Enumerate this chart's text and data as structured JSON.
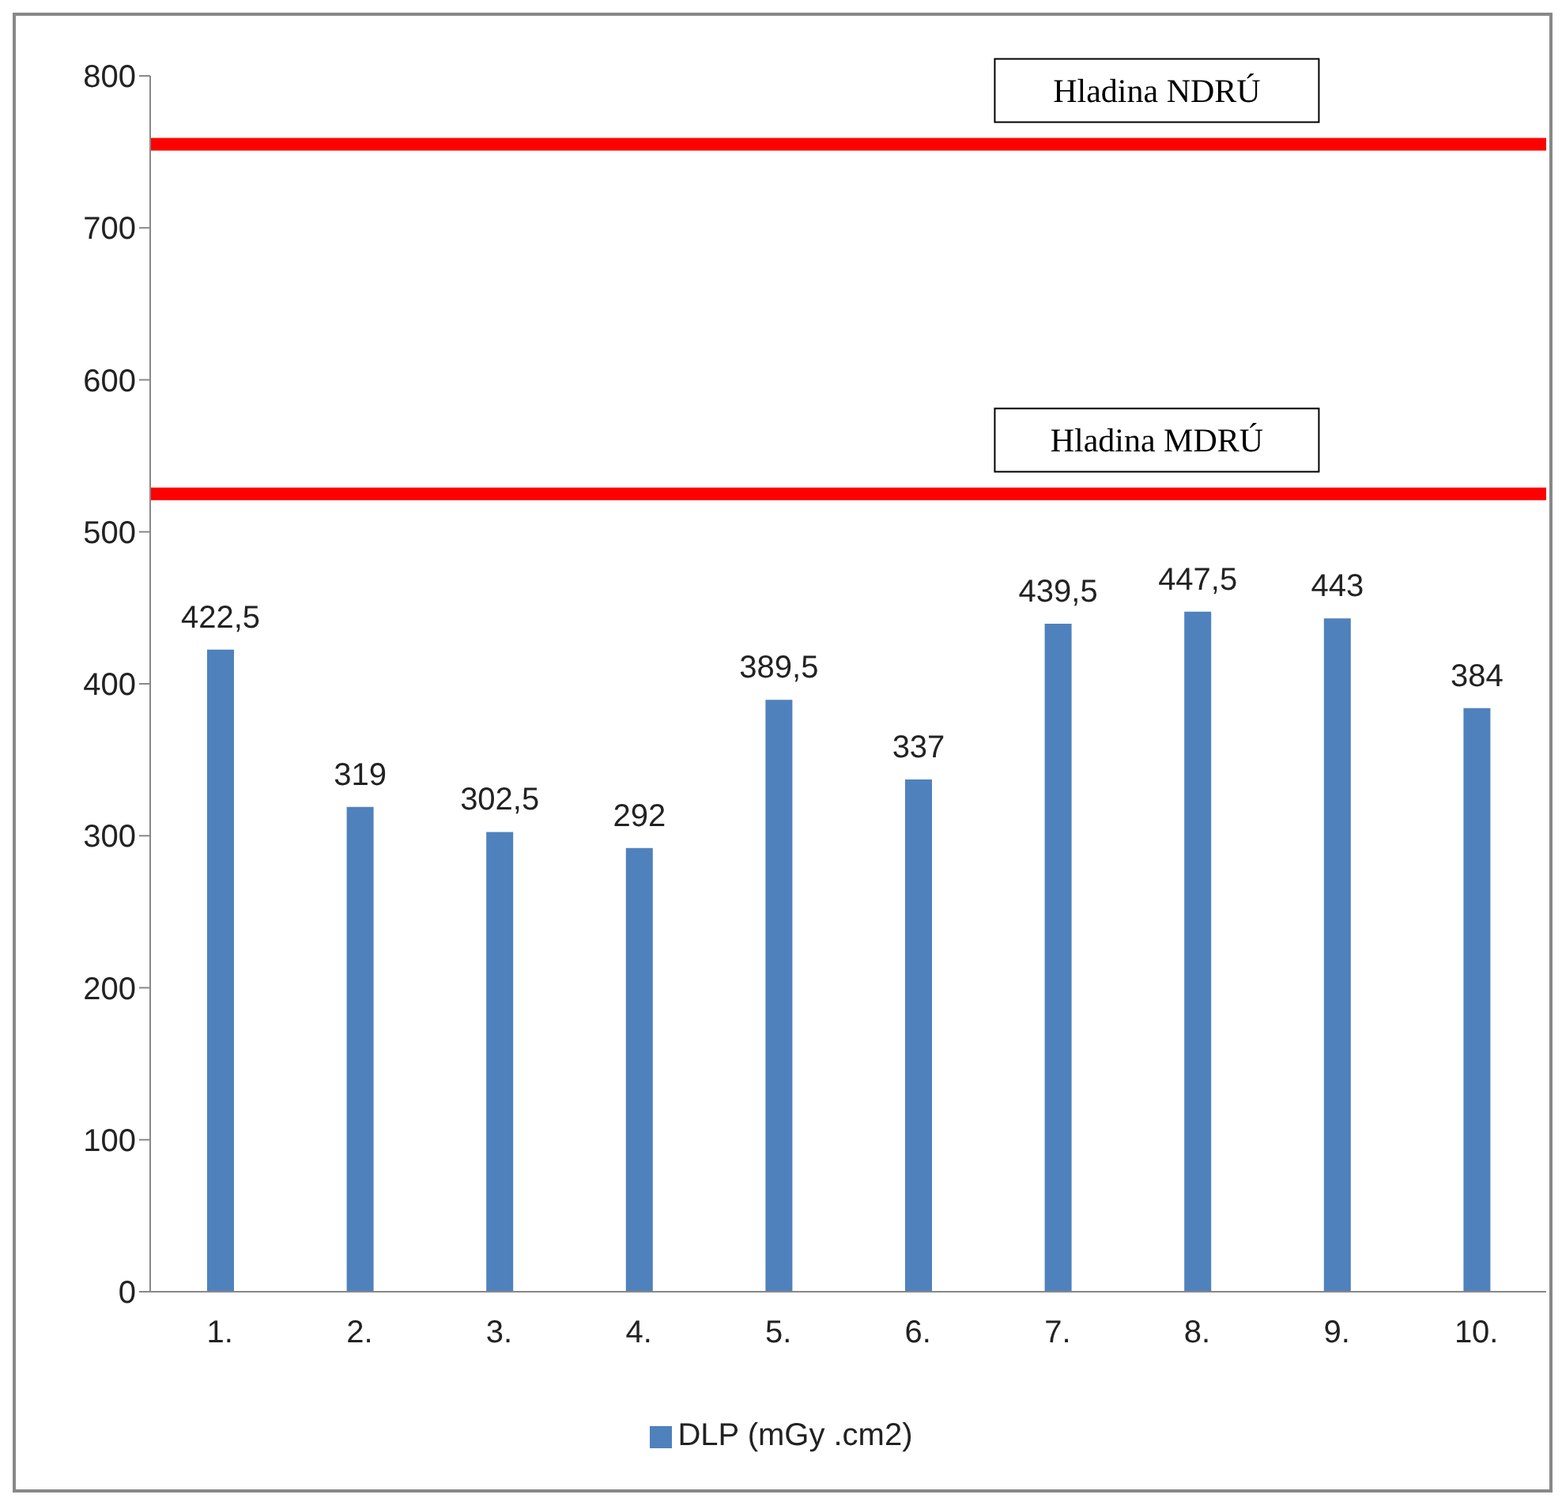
{
  "chart_data": {
    "type": "bar",
    "categories": [
      "1.",
      "2.",
      "3.",
      "4.",
      "5.",
      "6.",
      "7.",
      "8.",
      "9.",
      "10."
    ],
    "series": [
      {
        "name": "DLP (mGy .cm2)",
        "color": "#4f81bd",
        "values": [
          422.5,
          319,
          302.5,
          292,
          389.5,
          337,
          439.5,
          447.5,
          443,
          384
        ],
        "value_labels": [
          "422,5",
          "319",
          "302,5",
          "292",
          "389,5",
          "337",
          "439,5",
          "447,5",
          "443",
          "384"
        ]
      }
    ],
    "ylim": [
      0,
      800
    ],
    "yticks": [
      0,
      100,
      200,
      300,
      400,
      500,
      600,
      700,
      800
    ],
    "ref_lines": [
      {
        "axis": "y",
        "value": 755,
        "label": "Hladina NDRÚ",
        "color": "#ff0000"
      },
      {
        "axis": "y",
        "value": 525,
        "label": "Hladina MDRÚ",
        "color": "#ff0000"
      }
    ],
    "grid": false,
    "legend": "bottom"
  }
}
